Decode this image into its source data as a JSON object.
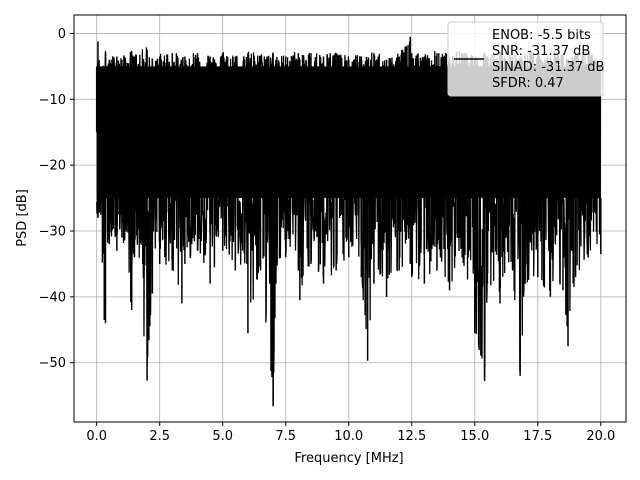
{
  "chart_data": {
    "type": "line",
    "title": "",
    "xlabel": "Frequency [MHz]",
    "ylabel": "PSD [dB]",
    "xlim": [
      -0.9,
      21.0
    ],
    "ylim": [
      -59.0,
      2.8
    ],
    "xticks": [
      0.0,
      2.5,
      5.0,
      7.5,
      10.0,
      12.5,
      15.0,
      17.5,
      20.0
    ],
    "xtick_labels": [
      "0.0",
      "2.5",
      "5.0",
      "7.5",
      "10.0",
      "12.5",
      "15.0",
      "17.5",
      "20.0"
    ],
    "yticks": [
      0,
      -10,
      -20,
      -30,
      -40,
      -50
    ],
    "ytick_labels": [
      "0",
      "−10",
      "−20",
      "−30",
      "−40",
      "−50"
    ],
    "grid": true,
    "legend_position": "top-right",
    "legend": [
      "ENOB: -5.5 bits",
      "SNR: -31.37 dB",
      "SINAD: -31.37 dB",
      "SFDR: 0.47"
    ],
    "series": [
      {
        "color": "#000000",
        "note_x_range": [
          0,
          20
        ],
        "x": [
          0.0,
          0.05,
          0.12,
          0.3,
          0.35,
          0.5,
          0.8,
          1.0,
          1.39,
          1.5,
          2.0,
          2.21,
          2.5,
          3.0,
          3.38,
          3.5,
          4.0,
          4.5,
          4.67,
          5.0,
          5.5,
          5.96,
          6.0,
          6.5,
          7.0,
          7.11,
          7.5,
          8.0,
          8.06,
          8.5,
          9.0,
          9.5,
          10.0,
          10.5,
          10.75,
          11.0,
          11.5,
          12.0,
          12.44,
          12.5,
          13.0,
          13.5,
          14.0,
          14.5,
          15.0,
          15.39,
          15.5,
          16.0,
          16.5,
          16.8,
          17.0,
          17.5,
          18.0,
          18.5,
          18.7,
          19.0,
          19.5,
          20.0
        ],
        "y_max": [
          -15,
          -1.2,
          -5,
          -5,
          -3,
          -4,
          -3.5,
          -4,
          -3,
          -3.5,
          -2.5,
          -4,
          -3.5,
          -3,
          -4,
          -3.5,
          -3,
          -3.5,
          -4,
          -3,
          -3.5,
          -4,
          -3,
          -3.5,
          -3,
          -4,
          -3.5,
          -3,
          -4,
          -3,
          -3.5,
          -3,
          -4,
          -3.5,
          -4,
          -3,
          -4,
          -3.5,
          -0.5,
          -3,
          -3.5,
          -3,
          -3.5,
          -3,
          -4,
          -3,
          -3.5,
          -3,
          -3.5,
          -4,
          -3.5,
          -3,
          -3.5,
          -3,
          -4,
          -3.5,
          -3,
          -5
        ],
        "y_min": [
          -25,
          -28,
          -26,
          -43.5,
          -44,
          -32,
          -33,
          -31,
          -42,
          -34,
          -52.7,
          -39.5,
          -35,
          -36,
          -41,
          -35,
          -33,
          -38,
          -35.5,
          -33,
          -36,
          -35,
          -45.5,
          -36,
          -56.6,
          -38,
          -34,
          -36,
          -40.5,
          -35,
          -38,
          -36,
          -34,
          -37,
          -49.7,
          -38,
          -40,
          -36,
          -35,
          -37,
          -38,
          -36,
          -39,
          -34,
          -45.5,
          -52.8,
          -38,
          -41,
          -36,
          -52,
          -38,
          -37,
          -40,
          -39,
          -47.5,
          -37,
          -34,
          -33.5
        ],
        "fill_band": [
          -25,
          -5
        ]
      }
    ]
  }
}
